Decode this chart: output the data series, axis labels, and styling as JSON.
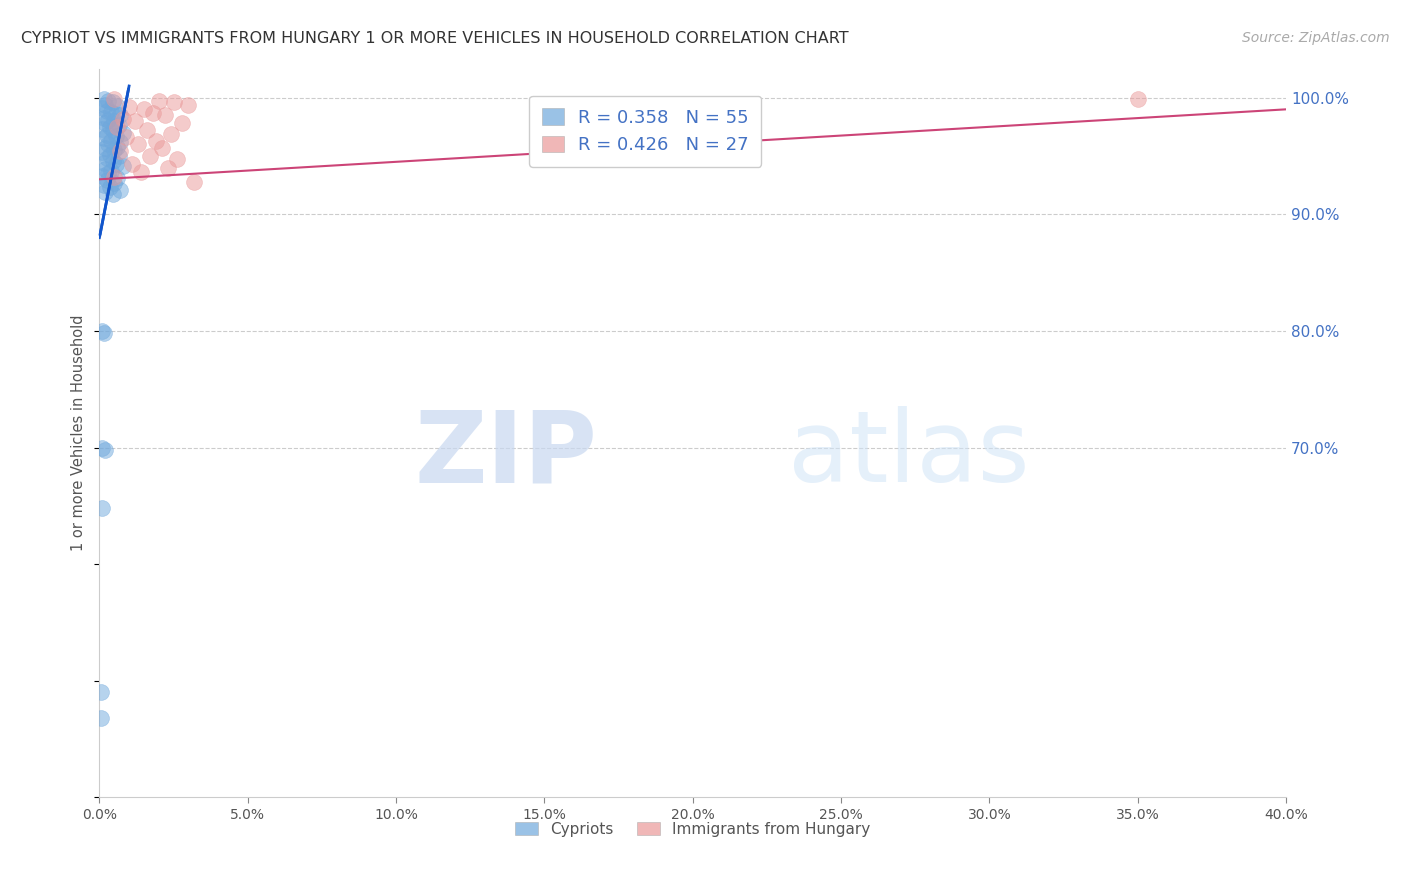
{
  "title": "CYPRIOT VS IMMIGRANTS FROM HUNGARY 1 OR MORE VEHICLES IN HOUSEHOLD CORRELATION CHART",
  "source": "Source: ZipAtlas.com",
  "ylabel": "1 or more Vehicles in Household",
  "xlim": [
    0.0,
    0.4
  ],
  "ylim": [
    0.4,
    1.025
  ],
  "legend_blue_R": "R = 0.358",
  "legend_blue_N": "N = 55",
  "legend_pink_R": "R = 0.426",
  "legend_pink_N": "N = 27",
  "blue_color": "#6fa8dc",
  "pink_color": "#ea9999",
  "blue_line_color": "#1155cc",
  "pink_line_color": "#cc4477",
  "blue_scatter": [
    [
      0.0015,
      0.999
    ],
    [
      0.003,
      0.997
    ],
    [
      0.0045,
      0.996
    ],
    [
      0.002,
      0.994
    ],
    [
      0.006,
      0.993
    ],
    [
      0.001,
      0.991
    ],
    [
      0.0025,
      0.989
    ],
    [
      0.004,
      0.988
    ],
    [
      0.0055,
      0.986
    ],
    [
      0.007,
      0.985
    ],
    [
      0.0015,
      0.983
    ],
    [
      0.003,
      0.981
    ],
    [
      0.005,
      0.98
    ],
    [
      0.002,
      0.978
    ],
    [
      0.0065,
      0.977
    ],
    [
      0.0035,
      0.975
    ],
    [
      0.001,
      0.973
    ],
    [
      0.0045,
      0.972
    ],
    [
      0.008,
      0.97
    ],
    [
      0.0025,
      0.968
    ],
    [
      0.0055,
      0.967
    ],
    [
      0.0015,
      0.965
    ],
    [
      0.004,
      0.963
    ],
    [
      0.007,
      0.962
    ],
    [
      0.003,
      0.96
    ],
    [
      0.006,
      0.958
    ],
    [
      0.002,
      0.957
    ],
    [
      0.005,
      0.955
    ],
    [
      0.001,
      0.953
    ],
    [
      0.0035,
      0.951
    ],
    [
      0.0065,
      0.95
    ],
    [
      0.0025,
      0.948
    ],
    [
      0.0045,
      0.946
    ],
    [
      0.0015,
      0.944
    ],
    [
      0.0055,
      0.943
    ],
    [
      0.008,
      0.941
    ],
    [
      0.002,
      0.939
    ],
    [
      0.004,
      0.937
    ],
    [
      0.003,
      0.935
    ],
    [
      0.001,
      0.933
    ],
    [
      0.006,
      0.931
    ],
    [
      0.0025,
      0.929
    ],
    [
      0.005,
      0.927
    ],
    [
      0.0015,
      0.925
    ],
    [
      0.0035,
      0.923
    ],
    [
      0.007,
      0.921
    ],
    [
      0.002,
      0.919
    ],
    [
      0.0045,
      0.917
    ],
    [
      0.001,
      0.8
    ],
    [
      0.0015,
      0.798
    ],
    [
      0.001,
      0.7
    ],
    [
      0.0018,
      0.698
    ],
    [
      0.0008,
      0.648
    ],
    [
      0.0006,
      0.49
    ],
    [
      0.0004,
      0.468
    ]
  ],
  "pink_scatter": [
    [
      0.005,
      0.999
    ],
    [
      0.02,
      0.997
    ],
    [
      0.025,
      0.996
    ],
    [
      0.03,
      0.994
    ],
    [
      0.01,
      0.992
    ],
    [
      0.015,
      0.99
    ],
    [
      0.018,
      0.987
    ],
    [
      0.022,
      0.985
    ],
    [
      0.008,
      0.982
    ],
    [
      0.012,
      0.98
    ],
    [
      0.028,
      0.978
    ],
    [
      0.006,
      0.975
    ],
    [
      0.016,
      0.972
    ],
    [
      0.024,
      0.969
    ],
    [
      0.009,
      0.966
    ],
    [
      0.019,
      0.963
    ],
    [
      0.013,
      0.96
    ],
    [
      0.021,
      0.957
    ],
    [
      0.007,
      0.954
    ],
    [
      0.017,
      0.95
    ],
    [
      0.026,
      0.947
    ],
    [
      0.011,
      0.943
    ],
    [
      0.023,
      0.94
    ],
    [
      0.014,
      0.936
    ],
    [
      0.005,
      0.932
    ],
    [
      0.032,
      0.928
    ],
    [
      0.35,
      0.999
    ]
  ],
  "blue_line": [
    [
      0.0,
      0.88
    ],
    [
      0.01,
      1.01
    ]
  ],
  "pink_line": [
    [
      0.0,
      0.93
    ],
    [
      0.4,
      0.99
    ]
  ],
  "watermark_zip": "ZIP",
  "watermark_atlas": "atlas",
  "background_color": "#ffffff",
  "grid_color": "#cccccc",
  "ytick_vals": [
    0.7,
    0.8,
    0.9,
    1.0
  ],
  "ytick_labels": [
    "70.0%",
    "80.0%",
    "90.0%",
    "100.0%"
  ],
  "xtick_count": 9
}
